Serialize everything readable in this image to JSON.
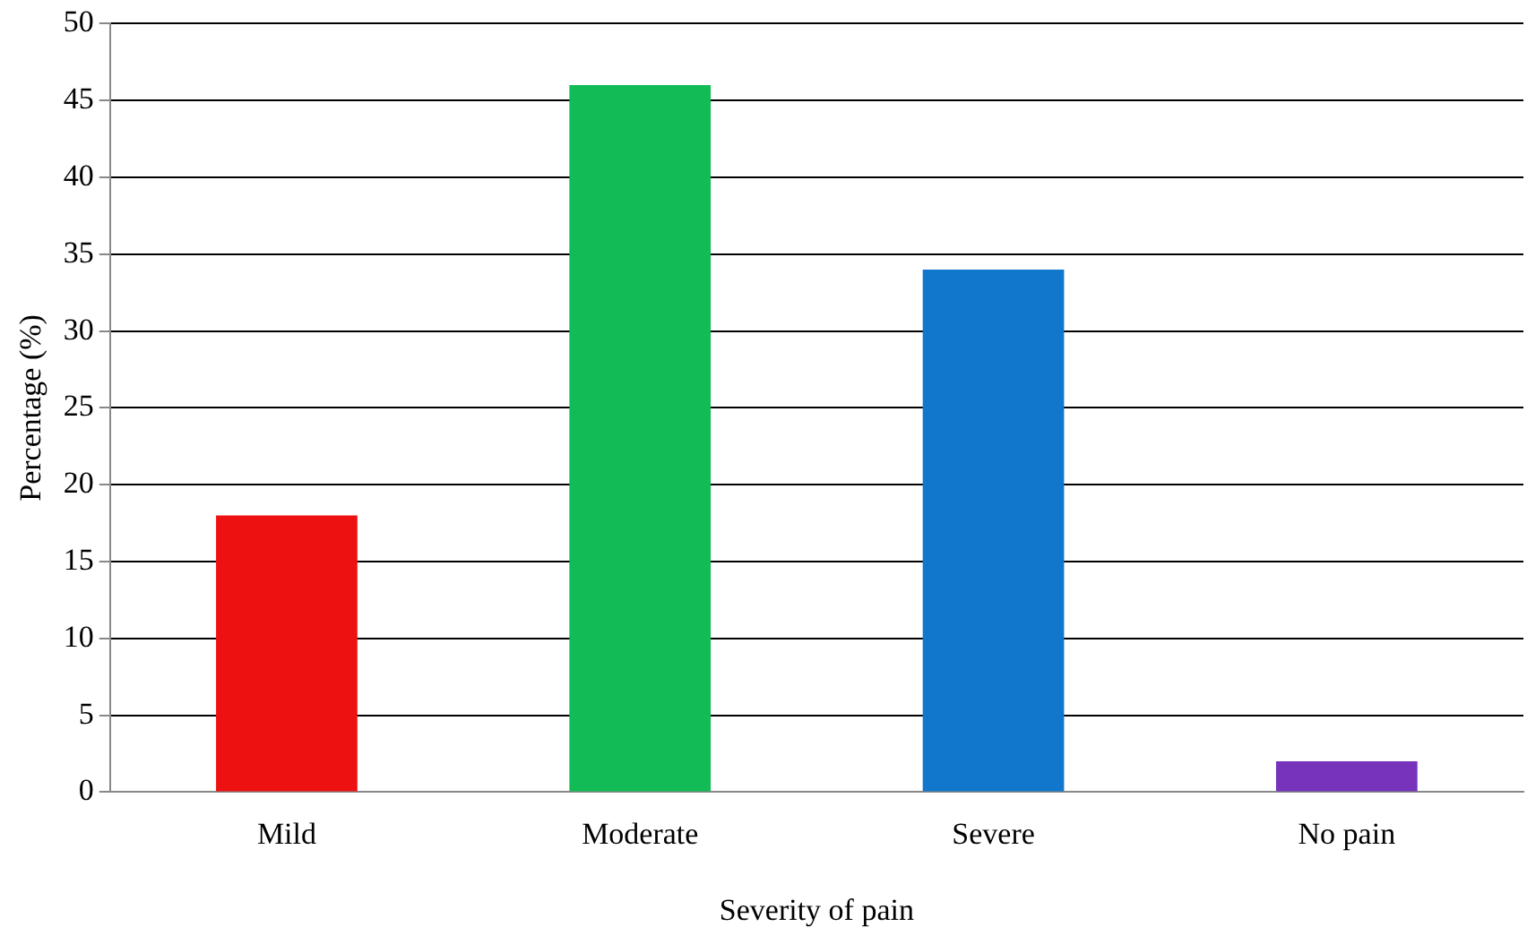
{
  "chart_data": {
    "type": "bar",
    "xlabel": "Severity of pain",
    "ylabel": "Percentage (%)",
    "categories": [
      "Mild",
      "Moderate",
      "Severe",
      "No pain"
    ],
    "values": [
      18,
      46,
      34,
      2
    ],
    "colors": [
      "#ee1111",
      "#11bb55",
      "#1177cc",
      "#7733bb"
    ],
    "ylim": [
      0,
      50
    ],
    "yticks": [
      0,
      5,
      10,
      15,
      20,
      25,
      30,
      35,
      40,
      45,
      50
    ],
    "grid": "y",
    "legend": false
  }
}
